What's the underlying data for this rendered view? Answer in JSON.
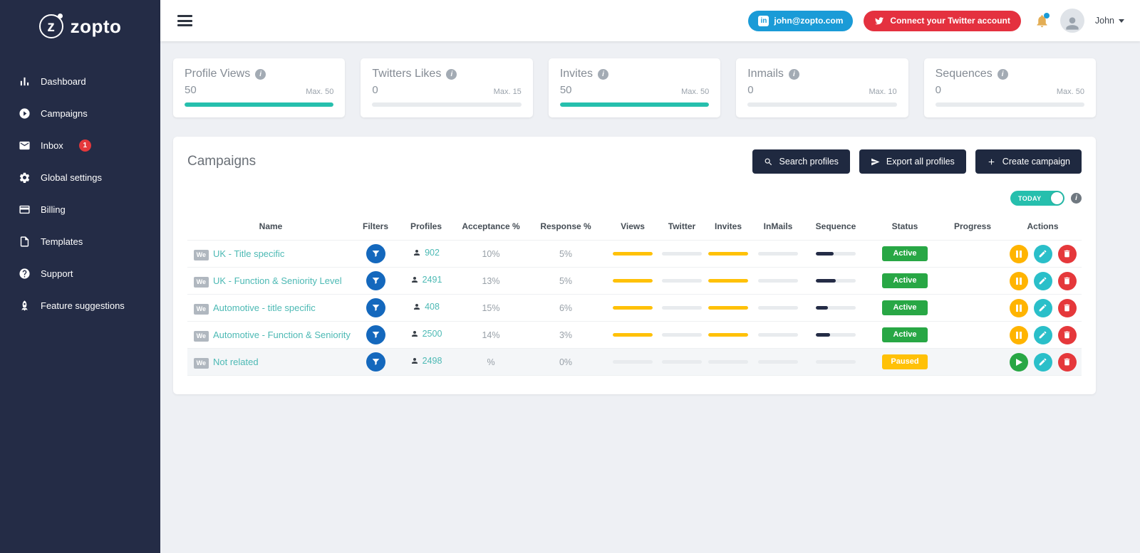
{
  "brand": {
    "logo_text": "zopto",
    "logo_letter": "z"
  },
  "theme": {
    "sidebar_bg": "#242c46",
    "accent_teal": "#26bfad",
    "link_blue": "#1a9bd7",
    "danger_red": "#e4313f",
    "active_green": "#28a745",
    "paused_yellow": "#ffc107",
    "bar_yellow": "#ffc107",
    "dark_button": "#1f2940"
  },
  "sidebar": {
    "items": [
      {
        "label": "Dashboard"
      },
      {
        "label": "Campaigns"
      },
      {
        "label": "Inbox",
        "badge": "1"
      },
      {
        "label": "Global settings"
      },
      {
        "label": "Billing"
      },
      {
        "label": "Templates"
      },
      {
        "label": "Support"
      },
      {
        "label": "Feature suggestions"
      }
    ]
  },
  "header": {
    "linkedin_account": "john@zopto.com",
    "twitter_button_label": "Connect your Twitter account",
    "user_name": "John"
  },
  "stats": {
    "cards": [
      {
        "title": "Profile Views",
        "value": "50",
        "max_label": "Max. 50",
        "progress": 100
      },
      {
        "title": "Twitters Likes",
        "value": "0",
        "max_label": "Max. 15",
        "progress": 0
      },
      {
        "title": "Invites",
        "value": "50",
        "max_label": "Max. 50",
        "progress": 100
      },
      {
        "title": "Inmails",
        "value": "0",
        "max_label": "Max. 10",
        "progress": 0
      },
      {
        "title": "Sequences",
        "value": "0",
        "max_label": "Max. 50",
        "progress": 0
      }
    ]
  },
  "campaigns": {
    "title": "Campaigns",
    "search_button": "Search profiles",
    "export_button": "Export all profiles",
    "create_button": "Create campaign",
    "toggle_label": "TODAY",
    "columns": [
      "Name",
      "Filters",
      "Profiles",
      "Acceptance %",
      "Response %",
      "Views",
      "Twitter",
      "Invites",
      "InMails",
      "Sequence",
      "Status",
      "Progress",
      "Actions"
    ],
    "rows": [
      {
        "tag": "We",
        "name": "UK - Title specific",
        "profiles": "902",
        "acceptance": "10%",
        "response": "5%",
        "bars": {
          "views": 100,
          "twitter": 0,
          "invites": 100,
          "inmails": 0,
          "sequence": 45
        },
        "status": "Active",
        "status_class": "active",
        "primary_action": "pause"
      },
      {
        "tag": "We",
        "name": "UK - Function & Seniority Level",
        "profiles": "2491",
        "acceptance": "13%",
        "response": "5%",
        "bars": {
          "views": 100,
          "twitter": 0,
          "invites": 100,
          "inmails": 0,
          "sequence": 50
        },
        "status": "Active",
        "status_class": "active",
        "primary_action": "pause"
      },
      {
        "tag": "We",
        "name": "Automotive - title specific",
        "profiles": "408",
        "acceptance": "15%",
        "response": "6%",
        "bars": {
          "views": 100,
          "twitter": 0,
          "invites": 100,
          "inmails": 0,
          "sequence": 30
        },
        "status": "Active",
        "status_class": "active",
        "primary_action": "pause"
      },
      {
        "tag": "We",
        "name": "Automotive - Function & Seniority",
        "profiles": "2500",
        "acceptance": "14%",
        "response": "3%",
        "bars": {
          "views": 100,
          "twitter": 0,
          "invites": 100,
          "inmails": 0,
          "sequence": 35
        },
        "status": "Active",
        "status_class": "active",
        "primary_action": "pause"
      },
      {
        "tag": "We",
        "name": "Not related",
        "profiles": "2498",
        "acceptance": "%",
        "response": "0%",
        "bars": {
          "views": 0,
          "twitter": 0,
          "invites": 0,
          "inmails": 0,
          "sequence": 0
        },
        "status": "Paused",
        "status_class": "paused",
        "primary_action": "play"
      }
    ]
  }
}
